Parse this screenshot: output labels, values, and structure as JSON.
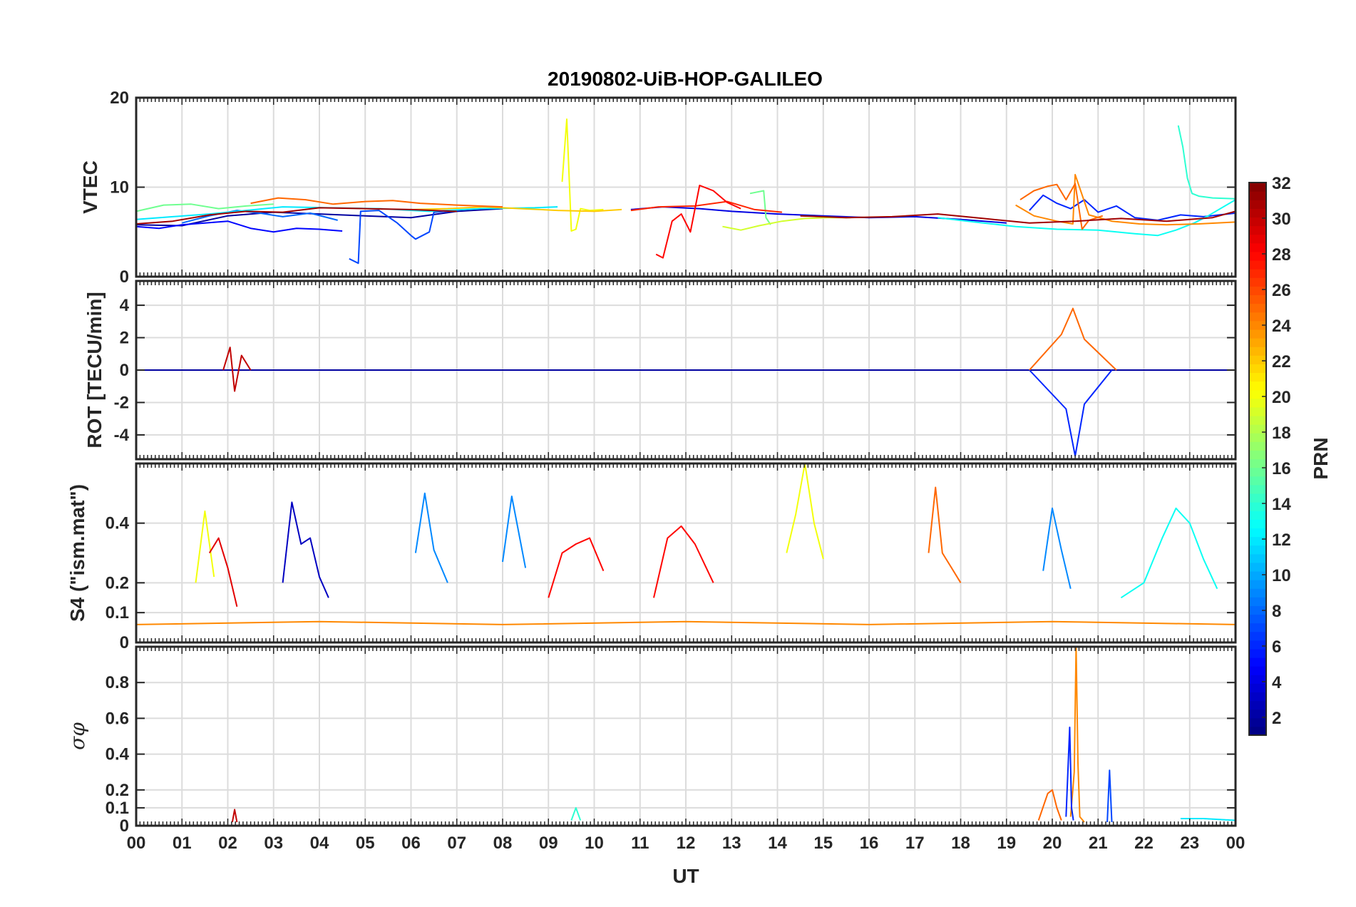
{
  "chart_data": {
    "type": "line",
    "title": "20190802-UiB-HOP-GALILEO",
    "xlabel": "UT",
    "xlim": [
      0,
      24
    ],
    "x_tick_labels": [
      "00",
      "01",
      "02",
      "03",
      "04",
      "05",
      "06",
      "07",
      "08",
      "09",
      "10",
      "11",
      "12",
      "13",
      "14",
      "15",
      "16",
      "17",
      "18",
      "19",
      "20",
      "21",
      "22",
      "23",
      "00"
    ],
    "colorbar": {
      "label": "PRN",
      "range": [
        1,
        32
      ],
      "colormap": "jet",
      "tick_labels": [
        "2",
        "4",
        "6",
        "8",
        "10",
        "12",
        "14",
        "16",
        "18",
        "20",
        "22",
        "24",
        "26",
        "28",
        "30",
        "32"
      ]
    },
    "panels": [
      {
        "id": "vtec",
        "ylabel": "VTEC",
        "ylim": [
          0,
          20
        ],
        "y_ticks": [
          0,
          10,
          20
        ],
        "y_tick_labels": [
          "0",
          "10",
          "20"
        ],
        "grid": true,
        "series": [
          {
            "prn": 2,
            "x": [
              0,
              1,
              2,
              3,
              4,
              5,
              6,
              7,
              8
            ],
            "y": [
              5.8,
              5.7,
              6.8,
              7.2,
              7.0,
              6.8,
              6.6,
              7.3,
              7.6
            ]
          },
          {
            "prn": 4,
            "x": [
              10.8,
              11.5,
              12.3,
              13,
              14,
              15,
              16,
              17,
              18,
              19
            ],
            "y": [
              7.5,
              7.8,
              7.6,
              7.3,
              7.0,
              6.8,
              6.6,
              6.7,
              6.4,
              6.0
            ]
          },
          {
            "prn": 5,
            "x": [
              0,
              0.5,
              1,
              2,
              2.5,
              3,
              3.5,
              4,
              4.5
            ],
            "y": [
              5.6,
              5.4,
              5.8,
              6.2,
              5.4,
              5.0,
              5.4,
              5.3,
              5.1
            ]
          },
          {
            "prn": 6,
            "x": [
              19.5,
              19.8,
              20.1,
              20.4,
              20.7,
              21,
              21.4,
              21.8,
              22.3,
              22.8,
              23.3,
              24
            ],
            "y": [
              7.4,
              9.1,
              8.2,
              7.6,
              8.6,
              7.2,
              7.9,
              6.6,
              6.3,
              6.9,
              6.7,
              7.1
            ]
          },
          {
            "prn": 7,
            "x": [
              4.65,
              4.85,
              4.9,
              5.3,
              5.7,
              6.0,
              6.1,
              6.4,
              6.5,
              7.0
            ],
            "y": [
              2.0,
              1.5,
              7.3,
              7.4,
              6.0,
              4.6,
              4.2,
              5.0,
              7.2,
              7.4
            ]
          },
          {
            "prn": 8,
            "x": [
              1.0,
              1.6,
              2.2,
              2.7,
              3.2,
              3.8,
              4.4
            ],
            "y": [
              6.0,
              6.8,
              7.4,
              7.1,
              6.7,
              7.1,
              6.3
            ]
          },
          {
            "prn": 12,
            "x": [
              0,
              0.8,
              1.6,
              2.4,
              3.2,
              4.2,
              5.3,
              6.4,
              7.5,
              8.7,
              9.2
            ],
            "y": [
              6.4,
              6.7,
              7.0,
              7.4,
              7.8,
              7.7,
              7.6,
              7.3,
              7.6,
              7.7,
              7.8
            ]
          },
          {
            "prn": 13,
            "x": [
              17.5,
              18.3,
              19.2,
              20.1,
              21.0,
              21.8,
              22.3,
              22.7,
              22.9,
              23.1,
              23.4,
              24
            ],
            "y": [
              6.6,
              6.1,
              5.6,
              5.3,
              5.2,
              4.8,
              4.6,
              5.2,
              5.6,
              6.0,
              6.8,
              8.6
            ]
          },
          {
            "prn": 14,
            "x": [
              22.75,
              22.85,
              22.95,
              23.05,
              23.2,
              23.5,
              24
            ],
            "y": [
              16.9,
              14.5,
              11.0,
              9.3,
              9.0,
              8.8,
              8.7
            ]
          },
          {
            "prn": 16,
            "x": [
              0,
              0.6,
              1.2,
              1.8,
              2.4,
              3.0
            ],
            "y": [
              7.3,
              8.0,
              8.1,
              7.6,
              7.9,
              8.1
            ]
          },
          {
            "prn": 16,
            "x": [
              13.4,
              13.7,
              13.75,
              13.85
            ],
            "y": [
              9.3,
              9.6,
              6.6,
              5.8
            ]
          },
          {
            "prn": 19,
            "x": [
              12.8,
              13.2,
              13.6,
              14.1,
              14.6,
              15.1,
              15.6
            ],
            "y": [
              5.6,
              5.2,
              5.7,
              6.2,
              6.5,
              6.6,
              6.6
            ]
          },
          {
            "prn": 20,
            "x": [
              9.3,
              9.4,
              9.5,
              9.6,
              9.7,
              9.9,
              10.2
            ],
            "y": [
              10.6,
              17.6,
              5.1,
              5.3,
              7.6,
              7.4,
              7.5
            ]
          },
          {
            "prn": 22,
            "x": [
              6.0,
              6.8,
              7.6,
              8.4,
              9.2,
              10.0,
              10.6
            ],
            "y": [
              7.5,
              7.6,
              7.8,
              7.6,
              7.4,
              7.3,
              7.5
            ]
          },
          {
            "prn": 24,
            "x": [
              19.2,
              19.6,
              20.1,
              20.45,
              20.5,
              20.8,
              21.3,
              21.9,
              22.5,
              23.2,
              24
            ],
            "y": [
              8.0,
              6.8,
              6.2,
              5.9,
              11.4,
              6.9,
              6.2,
              5.9,
              5.8,
              5.9,
              6.1
            ]
          },
          {
            "prn": 25,
            "x": [
              2.5,
              3.1,
              3.7,
              4.3,
              5.0,
              5.6,
              6.2,
              7.0,
              8.0
            ],
            "y": [
              8.2,
              8.8,
              8.6,
              8.1,
              8.4,
              8.5,
              8.2,
              8.0,
              7.8
            ]
          },
          {
            "prn": 25,
            "x": [
              19.3,
              19.6,
              19.9,
              20.1,
              20.3,
              20.5,
              20.65,
              20.8,
              21.1
            ],
            "y": [
              8.6,
              9.6,
              10.1,
              10.3,
              8.6,
              10.4,
              5.3,
              6.3,
              6.8
            ]
          },
          {
            "prn": 27,
            "x": [
              10.8,
              11.4,
              12.2,
              12.9,
              13.5,
              14.1
            ],
            "y": [
              7.4,
              7.8,
              7.9,
              8.4,
              7.5,
              7.2
            ]
          },
          {
            "prn": 28,
            "x": [
              11.35,
              11.5,
              11.7,
              11.9,
              12.1,
              12.3,
              12.6,
              12.9,
              13.2
            ],
            "y": [
              2.5,
              2.1,
              6.2,
              7.0,
              5.0,
              10.2,
              9.6,
              8.3,
              7.6
            ]
          },
          {
            "prn": 31,
            "x": [
              0,
              0.8,
              1.6,
              2.4,
              3.2,
              4.0,
              5.0,
              6.0,
              7.0
            ],
            "y": [
              5.9,
              6.2,
              6.9,
              7.3,
              7.2,
              7.7,
              7.6,
              7.5,
              7.3
            ]
          },
          {
            "prn": 31,
            "x": [
              14.5,
              15.5,
              16.5,
              17.5,
              18.5,
              19.5,
              20.5,
              21.5,
              22.5,
              23.5,
              24
            ],
            "y": [
              6.8,
              6.6,
              6.7,
              7.0,
              6.5,
              6.0,
              6.2,
              6.5,
              6.2,
              6.6,
              7.3
            ]
          }
        ]
      },
      {
        "id": "rot",
        "ylabel": "ROT [TECU/min]",
        "ylim": [
          -5.5,
          5.5
        ],
        "y_ticks": [
          -4,
          -2,
          0,
          2,
          4
        ],
        "y_tick_labels": [
          "-4",
          "-2",
          "0",
          "2",
          "4"
        ],
        "grid": true,
        "series": [
          {
            "prn": 2,
            "x": [
              0,
              24
            ],
            "y": [
              0,
              0
            ]
          },
          {
            "prn": 6,
            "x": [
              19.5,
              20.3,
              20.5,
              20.7,
              21.3
            ],
            "y": [
              0,
              -2.4,
              -5.3,
              -2.1,
              0
            ]
          },
          {
            "prn": 25,
            "x": [
              19.5,
              20.2,
              20.45,
              20.7,
              21.4
            ],
            "y": [
              0,
              2.2,
              3.8,
              1.9,
              0
            ]
          },
          {
            "prn": 30,
            "x": [
              1.9,
              2.05,
              2.15,
              2.3,
              2.5
            ],
            "y": [
              0,
              1.4,
              -1.3,
              0.9,
              0
            ]
          }
        ]
      },
      {
        "id": "s4",
        "ylabel": "S4 (\"ism.mat\")",
        "ylim": [
          0,
          0.6
        ],
        "y_ticks": [
          0,
          0.1,
          0.2,
          0.4
        ],
        "y_tick_labels": [
          "0",
          "0.1",
          "0.2",
          "0.4"
        ],
        "grid": true,
        "series": [
          {
            "prn": 3,
            "x": [
              3.2,
              3.4,
              3.6,
              3.8,
              4.0,
              4.2
            ],
            "y": [
              0.2,
              0.47,
              0.33,
              0.35,
              0.22,
              0.15
            ]
          },
          {
            "prn": 9,
            "x": [
              6.1,
              6.3,
              6.5,
              6.8
            ],
            "y": [
              0.3,
              0.5,
              0.31,
              0.2
            ]
          },
          {
            "prn": 9,
            "x": [
              19.8,
              20.0,
              20.2,
              20.4
            ],
            "y": [
              0.24,
              0.45,
              0.31,
              0.18
            ]
          },
          {
            "prn": 9,
            "x": [
              8.0,
              8.2,
              8.5
            ],
            "y": [
              0.27,
              0.49,
              0.25
            ]
          },
          {
            "prn": 13,
            "x": [
              21.5,
              22.0,
              22.4,
              22.7,
              23.0,
              23.3,
              23.6
            ],
            "y": [
              0.15,
              0.2,
              0.35,
              0.45,
              0.4,
              0.28,
              0.18
            ]
          },
          {
            "prn": 20,
            "x": [
              14.2,
              14.4,
              14.6,
              14.8,
              15.0
            ],
            "y": [
              0.3,
              0.43,
              0.6,
              0.4,
              0.28
            ]
          },
          {
            "prn": 20,
            "x": [
              1.3,
              1.5,
              1.7
            ],
            "y": [
              0.2,
              0.44,
              0.22
            ]
          },
          {
            "prn": 25,
            "x": [
              17.3,
              17.45,
              17.6,
              17.8,
              18.0
            ],
            "y": [
              0.3,
              0.52,
              0.3,
              0.25,
              0.2
            ]
          },
          {
            "prn": 28,
            "x": [
              9.0,
              9.3,
              9.6,
              9.9,
              10.2
            ],
            "y": [
              0.15,
              0.3,
              0.33,
              0.35,
              0.24
            ]
          },
          {
            "prn": 28,
            "x": [
              11.3,
              11.6,
              11.9,
              12.2,
              12.6
            ],
            "y": [
              0.15,
              0.35,
              0.39,
              0.33,
              0.2
            ]
          },
          {
            "prn": 29,
            "x": [
              1.6,
              1.8,
              2.0,
              2.2
            ],
            "y": [
              0.3,
              0.35,
              0.25,
              0.12
            ]
          },
          {
            "prn": 24,
            "x": [
              0,
              4,
              8,
              12,
              16,
              20,
              24
            ],
            "y": [
              0.06,
              0.07,
              0.06,
              0.07,
              0.06,
              0.07,
              0.06
            ]
          }
        ]
      },
      {
        "id": "sigma_phi",
        "ylabel": "σφ",
        "ylim": [
          0,
          1.0
        ],
        "y_ticks": [
          0,
          0.1,
          0.2,
          0.4,
          0.6,
          0.8
        ],
        "y_tick_labels": [
          "0",
          "0.1",
          "0.2",
          "0.4",
          "0.6",
          "0.8"
        ],
        "grid": true,
        "series": [
          {
            "prn": 24,
            "x": [
              20.4,
              20.48,
              20.52,
              20.56,
              20.6,
              20.7
            ],
            "y": [
              0.05,
              0.3,
              1.0,
              0.35,
              0.05,
              0.02
            ]
          },
          {
            "prn": 6,
            "x": [
              20.3,
              20.38,
              20.42,
              20.46
            ],
            "y": [
              0.05,
              0.55,
              0.1,
              0.03
            ]
          },
          {
            "prn": 7,
            "x": [
              21.2,
              21.25,
              21.3
            ],
            "y": [
              0.02,
              0.31,
              0.02
            ]
          },
          {
            "prn": 25,
            "x": [
              19.7,
              19.9,
              20.0,
              20.1,
              20.2
            ],
            "y": [
              0.03,
              0.18,
              0.2,
              0.1,
              0.03
            ]
          },
          {
            "prn": 30,
            "x": [
              2.1,
              2.15,
              2.2
            ],
            "y": [
              0.02,
              0.09,
              0.02
            ]
          },
          {
            "prn": 14,
            "x": [
              9.5,
              9.6,
              9.7
            ],
            "y": [
              0.03,
              0.1,
              0.03
            ]
          },
          {
            "prn": 12,
            "x": [
              22.8,
              23.3,
              24
            ],
            "y": [
              0.04,
              0.04,
              0.03
            ]
          }
        ]
      }
    ]
  }
}
